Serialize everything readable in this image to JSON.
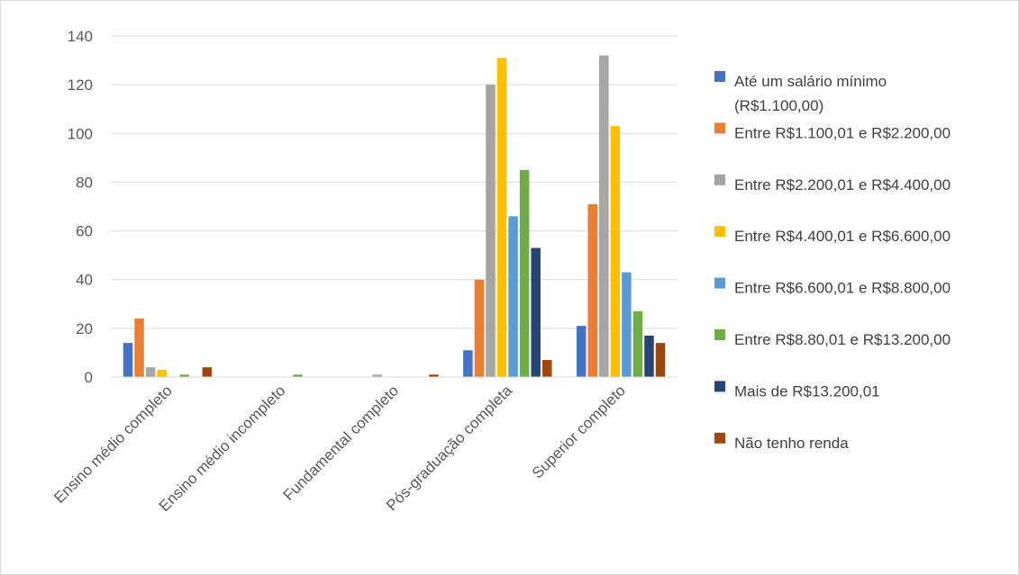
{
  "chart_data": {
    "type": "bar",
    "categories": [
      "Ensino médio completo",
      "Ensino médio incompleto",
      "Fundamental completo",
      "Pós-graduação completa",
      "Superior completo"
    ],
    "ylim": [
      0,
      140
    ],
    "yticks": [
      0,
      20,
      40,
      60,
      80,
      100,
      120,
      140
    ],
    "grid": true,
    "legend_position": "right",
    "series": [
      {
        "name": "Até um salário mínimo (R$1.100,00)",
        "name_lines": [
          "Até um salário mínimo",
          "(R$1.100,00)"
        ],
        "color": "#4472c4",
        "values": [
          14,
          0,
          0,
          11,
          21
        ]
      },
      {
        "name": "Entre R$1.100,01 e R$2.200,00",
        "name_lines": [
          "Entre R$1.100,01 e R$2.200,00"
        ],
        "color": "#ed7d31",
        "values": [
          24,
          0,
          0,
          40,
          71
        ]
      },
      {
        "name": "Entre R$2.200,01 e R$4.400,00",
        "name_lines": [
          "Entre R$2.200,01 e R$4.400,00"
        ],
        "color": "#a5a5a5",
        "values": [
          4,
          0,
          1,
          120,
          132
        ]
      },
      {
        "name": "Entre R$4.400,01 e R$6.600,00",
        "name_lines": [
          "Entre R$4.400,01 e R$6.600,00"
        ],
        "color": "#ffc000",
        "values": [
          3,
          0,
          0,
          131,
          103
        ]
      },
      {
        "name": "Entre R$6.600,01 e R$8.800,00",
        "name_lines": [
          "Entre R$6.600,01 e R$8.800,00"
        ],
        "color": "#5b9bd5",
        "values": [
          0,
          0,
          0,
          66,
          43
        ]
      },
      {
        "name": "Entre R$8.80,01 e R$13.200,00",
        "name_lines": [
          "Entre R$8.80,01 e R$13.200,00"
        ],
        "color": "#70ad47",
        "values": [
          1,
          1,
          0,
          85,
          27
        ]
      },
      {
        "name": "Mais de R$13.200,01",
        "name_lines": [
          "Mais de R$13.200,01"
        ],
        "color": "#264478",
        "values": [
          0,
          0,
          0,
          53,
          17
        ]
      },
      {
        "name": "Não tenho renda",
        "name_lines": [
          "Não tenho renda"
        ],
        "color": "#9e480e",
        "values": [
          4,
          0,
          1,
          7,
          14
        ]
      }
    ]
  }
}
